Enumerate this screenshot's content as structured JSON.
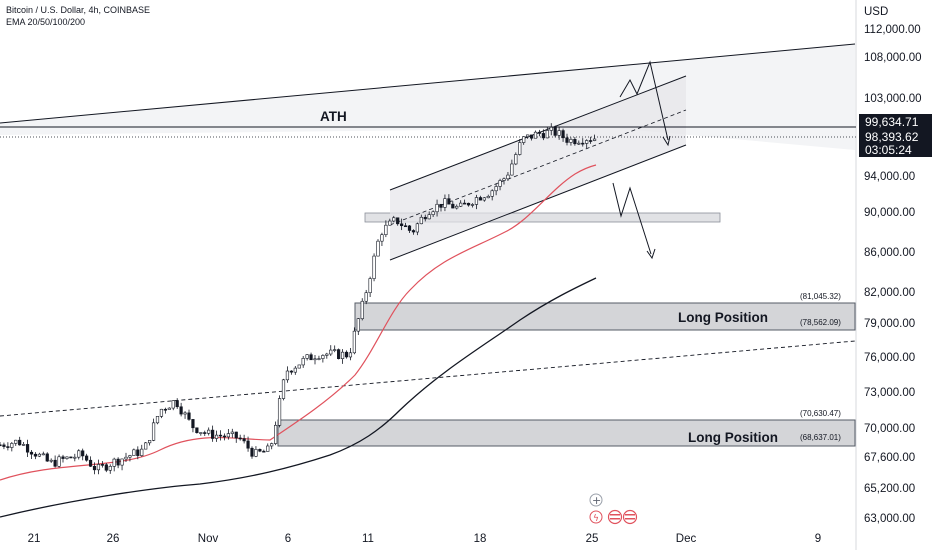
{
  "header": {
    "title": "Bitcoin / U.S. Dollar, 4h, COINBASE",
    "indicator": "EMA 20/50/100/200"
  },
  "currency": "USD",
  "price_axis": {
    "ticks": [
      "112,000.00",
      "108,000.00",
      "103,000.00",
      "94,000.00",
      "90,000.00",
      "86,000.00",
      "82,000.00",
      "79,000.00",
      "76,000.00",
      "73,000.00",
      "70,000.00",
      "67,600.00",
      "65,200.00",
      "63,000.00"
    ],
    "ath_value": "99,634.71",
    "current_price": "98,393.62",
    "countdown": "03:05:24"
  },
  "time_axis": {
    "ticks": [
      "21",
      "26",
      "Nov",
      "6",
      "11",
      "18",
      "25",
      "Dec",
      "9"
    ]
  },
  "annotations": {
    "ath_label": "ATH",
    "zones": [
      {
        "label": "Long Position",
        "top_value": "(81,045.32)",
        "bottom_value": "(78,562.09)"
      },
      {
        "label": "Long Position",
        "top_value": "(70,630.47)",
        "bottom_value": "(68,637.01)"
      }
    ]
  },
  "chart_data": {
    "type": "candlestick",
    "symbol": "Bitcoin / U.S. Dollar",
    "interval": "4h",
    "exchange": "COINBASE",
    "ema_periods": [
      20,
      50,
      100,
      200
    ],
    "price_anchors": [
      {
        "price": 112000
      },
      {
        "price": 108000
      },
      {
        "price": 103000
      },
      {
        "price": 94000
      },
      {
        "price": 90000
      },
      {
        "price": 86000
      },
      {
        "price": 82000
      },
      {
        "price": 79000
      },
      {
        "price": 76000
      },
      {
        "price": 73000
      },
      {
        "price": 70000
      },
      {
        "price": 67600
      },
      {
        "price": 65200
      },
      {
        "price": 63000
      }
    ],
    "close_path": [
      {
        "date": "Oct 18",
        "price": 68400
      },
      {
        "date": "Oct 20",
        "price": 68900
      },
      {
        "date": "Oct 22",
        "price": 67100
      },
      {
        "date": "Oct 24",
        "price": 67800
      },
      {
        "date": "Oct 25",
        "price": 66600
      },
      {
        "date": "Oct 26",
        "price": 67200
      },
      {
        "date": "Oct 28",
        "price": 68200
      },
      {
        "date": "Oct 29",
        "price": 71500
      },
      {
        "date": "Oct 30",
        "price": 72300
      },
      {
        "date": "Oct 31",
        "price": 70200
      },
      {
        "date": "Nov 1",
        "price": 69500
      },
      {
        "date": "Nov 3",
        "price": 69200
      },
      {
        "date": "Nov 4",
        "price": 67800
      },
      {
        "date": "Nov 5",
        "price": 68200
      },
      {
        "date": "Nov 6",
        "price": 74800
      },
      {
        "date": "Nov 7",
        "price": 75600
      },
      {
        "date": "Nov 8",
        "price": 76300
      },
      {
        "date": "Nov 10",
        "price": 76200
      },
      {
        "date": "Nov 11",
        "price": 81500
      },
      {
        "date": "Nov 12",
        "price": 88000
      },
      {
        "date": "Nov 13",
        "price": 89200
      },
      {
        "date": "Nov 14",
        "price": 88000
      },
      {
        "date": "Nov 15",
        "price": 90200
      },
      {
        "date": "Nov 16",
        "price": 91000
      },
      {
        "date": "Nov 17",
        "price": 90400
      },
      {
        "date": "Nov 18",
        "price": 91500
      },
      {
        "date": "Nov 19",
        "price": 92300
      },
      {
        "date": "Nov 20",
        "price": 94000
      },
      {
        "date": "Nov 21",
        "price": 98200
      },
      {
        "date": "Nov 22",
        "price": 98900
      },
      {
        "date": "Nov 23",
        "price": 99100
      },
      {
        "date": "Nov 24",
        "price": 98100
      },
      {
        "date": "Nov 25",
        "price": 98393
      }
    ],
    "levels": {
      "ath": 99634.71,
      "current": 98393.62
    },
    "zones": [
      {
        "name": "Long Position",
        "high": 81045.32,
        "low": 78562.09
      },
      {
        "name": "Long Position",
        "high": 70630.47,
        "low": 68637.01
      }
    ]
  }
}
